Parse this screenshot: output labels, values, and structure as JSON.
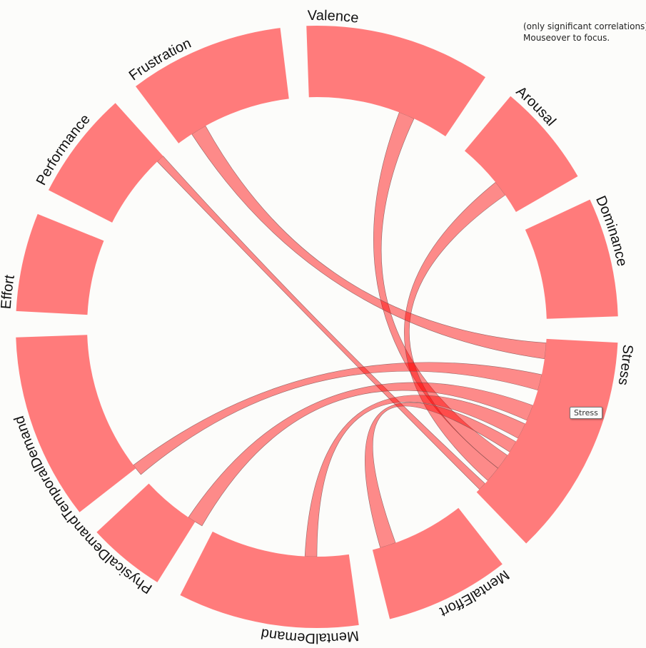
{
  "notes": {
    "line1": "(only significant correlations)",
    "line2": "Mouseover to focus."
  },
  "tooltip": "Stress",
  "colors": {
    "arc": "#ff7b7b",
    "chord": "#ff0000",
    "background": "#fcfcfa"
  },
  "groups": [
    {
      "id": "valence",
      "label": "Valence",
      "start": 358,
      "end": 34
    },
    {
      "id": "arousal",
      "label": "Arousal",
      "start": 40,
      "end": 60
    },
    {
      "id": "dominance",
      "label": "Dominance",
      "start": 65,
      "end": 88
    },
    {
      "id": "stress",
      "label": "Stress",
      "start": 93,
      "end": 136
    },
    {
      "id": "mentaleffort",
      "label": "MentalEffort",
      "start": 142,
      "end": 166
    },
    {
      "id": "mentaldemand",
      "label": "MentalDemand",
      "start": 172,
      "end": 207
    },
    {
      "id": "physicaldemand",
      "label": "PhysicalDemand",
      "start": 212,
      "end": 227
    },
    {
      "id": "temporaldemand",
      "label": "TemporalDemand",
      "start": 232,
      "end": 268
    },
    {
      "id": "effort",
      "label": "Effort",
      "start": 273,
      "end": 292
    },
    {
      "id": "performance",
      "label": "Performance",
      "start": 297,
      "end": 318
    },
    {
      "id": "frustration",
      "label": "Frustration",
      "start": 323,
      "end": 353
    }
  ],
  "chords": [
    {
      "source": "valence",
      "target": "stress",
      "s": [
        21,
        25
      ],
      "t": [
        124,
        128
      ]
    },
    {
      "source": "arousal",
      "target": "stress",
      "s": [
        51,
        55
      ],
      "t": [
        128,
        132
      ]
    },
    {
      "source": "frustration",
      "target": "stress",
      "s": [
        327,
        331
      ],
      "t": [
        94,
        98
      ]
    },
    {
      "source": "performance",
      "target": "stress",
      "s": [
        316,
        318
      ],
      "t": [
        133,
        135
      ]
    },
    {
      "source": "temporaldemand",
      "target": "stress",
      "s": [
        230,
        233
      ],
      "t": [
        102,
        106
      ]
    },
    {
      "source": "physicaldemand",
      "target": "stress",
      "s": [
        210,
        214
      ],
      "t": [
        110,
        114
      ]
    },
    {
      "source": "mentaldemand",
      "target": "stress",
      "s": [
        180,
        183
      ],
      "t": [
        115,
        119
      ]
    },
    {
      "source": "mentaleffort",
      "target": "stress",
      "s": [
        160,
        164
      ],
      "t": [
        120,
        123
      ]
    }
  ]
}
